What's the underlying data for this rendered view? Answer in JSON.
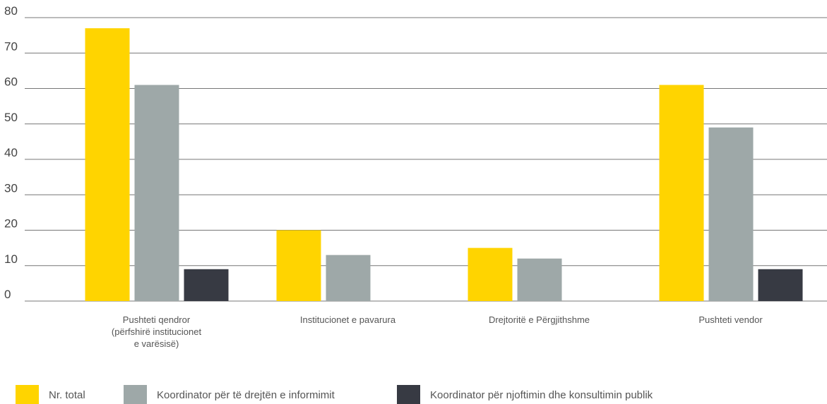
{
  "chart_data": {
    "type": "bar",
    "categories": [
      "Pushteti qendror\n(përfshirë institucionet\ne varësisë)",
      "Institucionet e pavarura",
      "Drejtoritë e Përgjithshme",
      "Pushteti vendor"
    ],
    "series": [
      {
        "name": "Nr. total",
        "color": "#ffd400",
        "values": [
          77,
          20,
          15,
          61
        ]
      },
      {
        "name": "Koordinator për të drejtën e informimit",
        "color": "#9ea8a8",
        "values": [
          61,
          13,
          12,
          49
        ]
      },
      {
        "name": "Koordinator për njoftimin dhe konsultimin publik",
        "color": "#373a43",
        "values": [
          9,
          null,
          null,
          9
        ]
      }
    ],
    "ylim": [
      0,
      80
    ],
    "yticks": [
      0,
      10,
      20,
      30,
      40,
      50,
      60,
      70,
      80
    ],
    "grid": true,
    "legend": "bottom"
  }
}
